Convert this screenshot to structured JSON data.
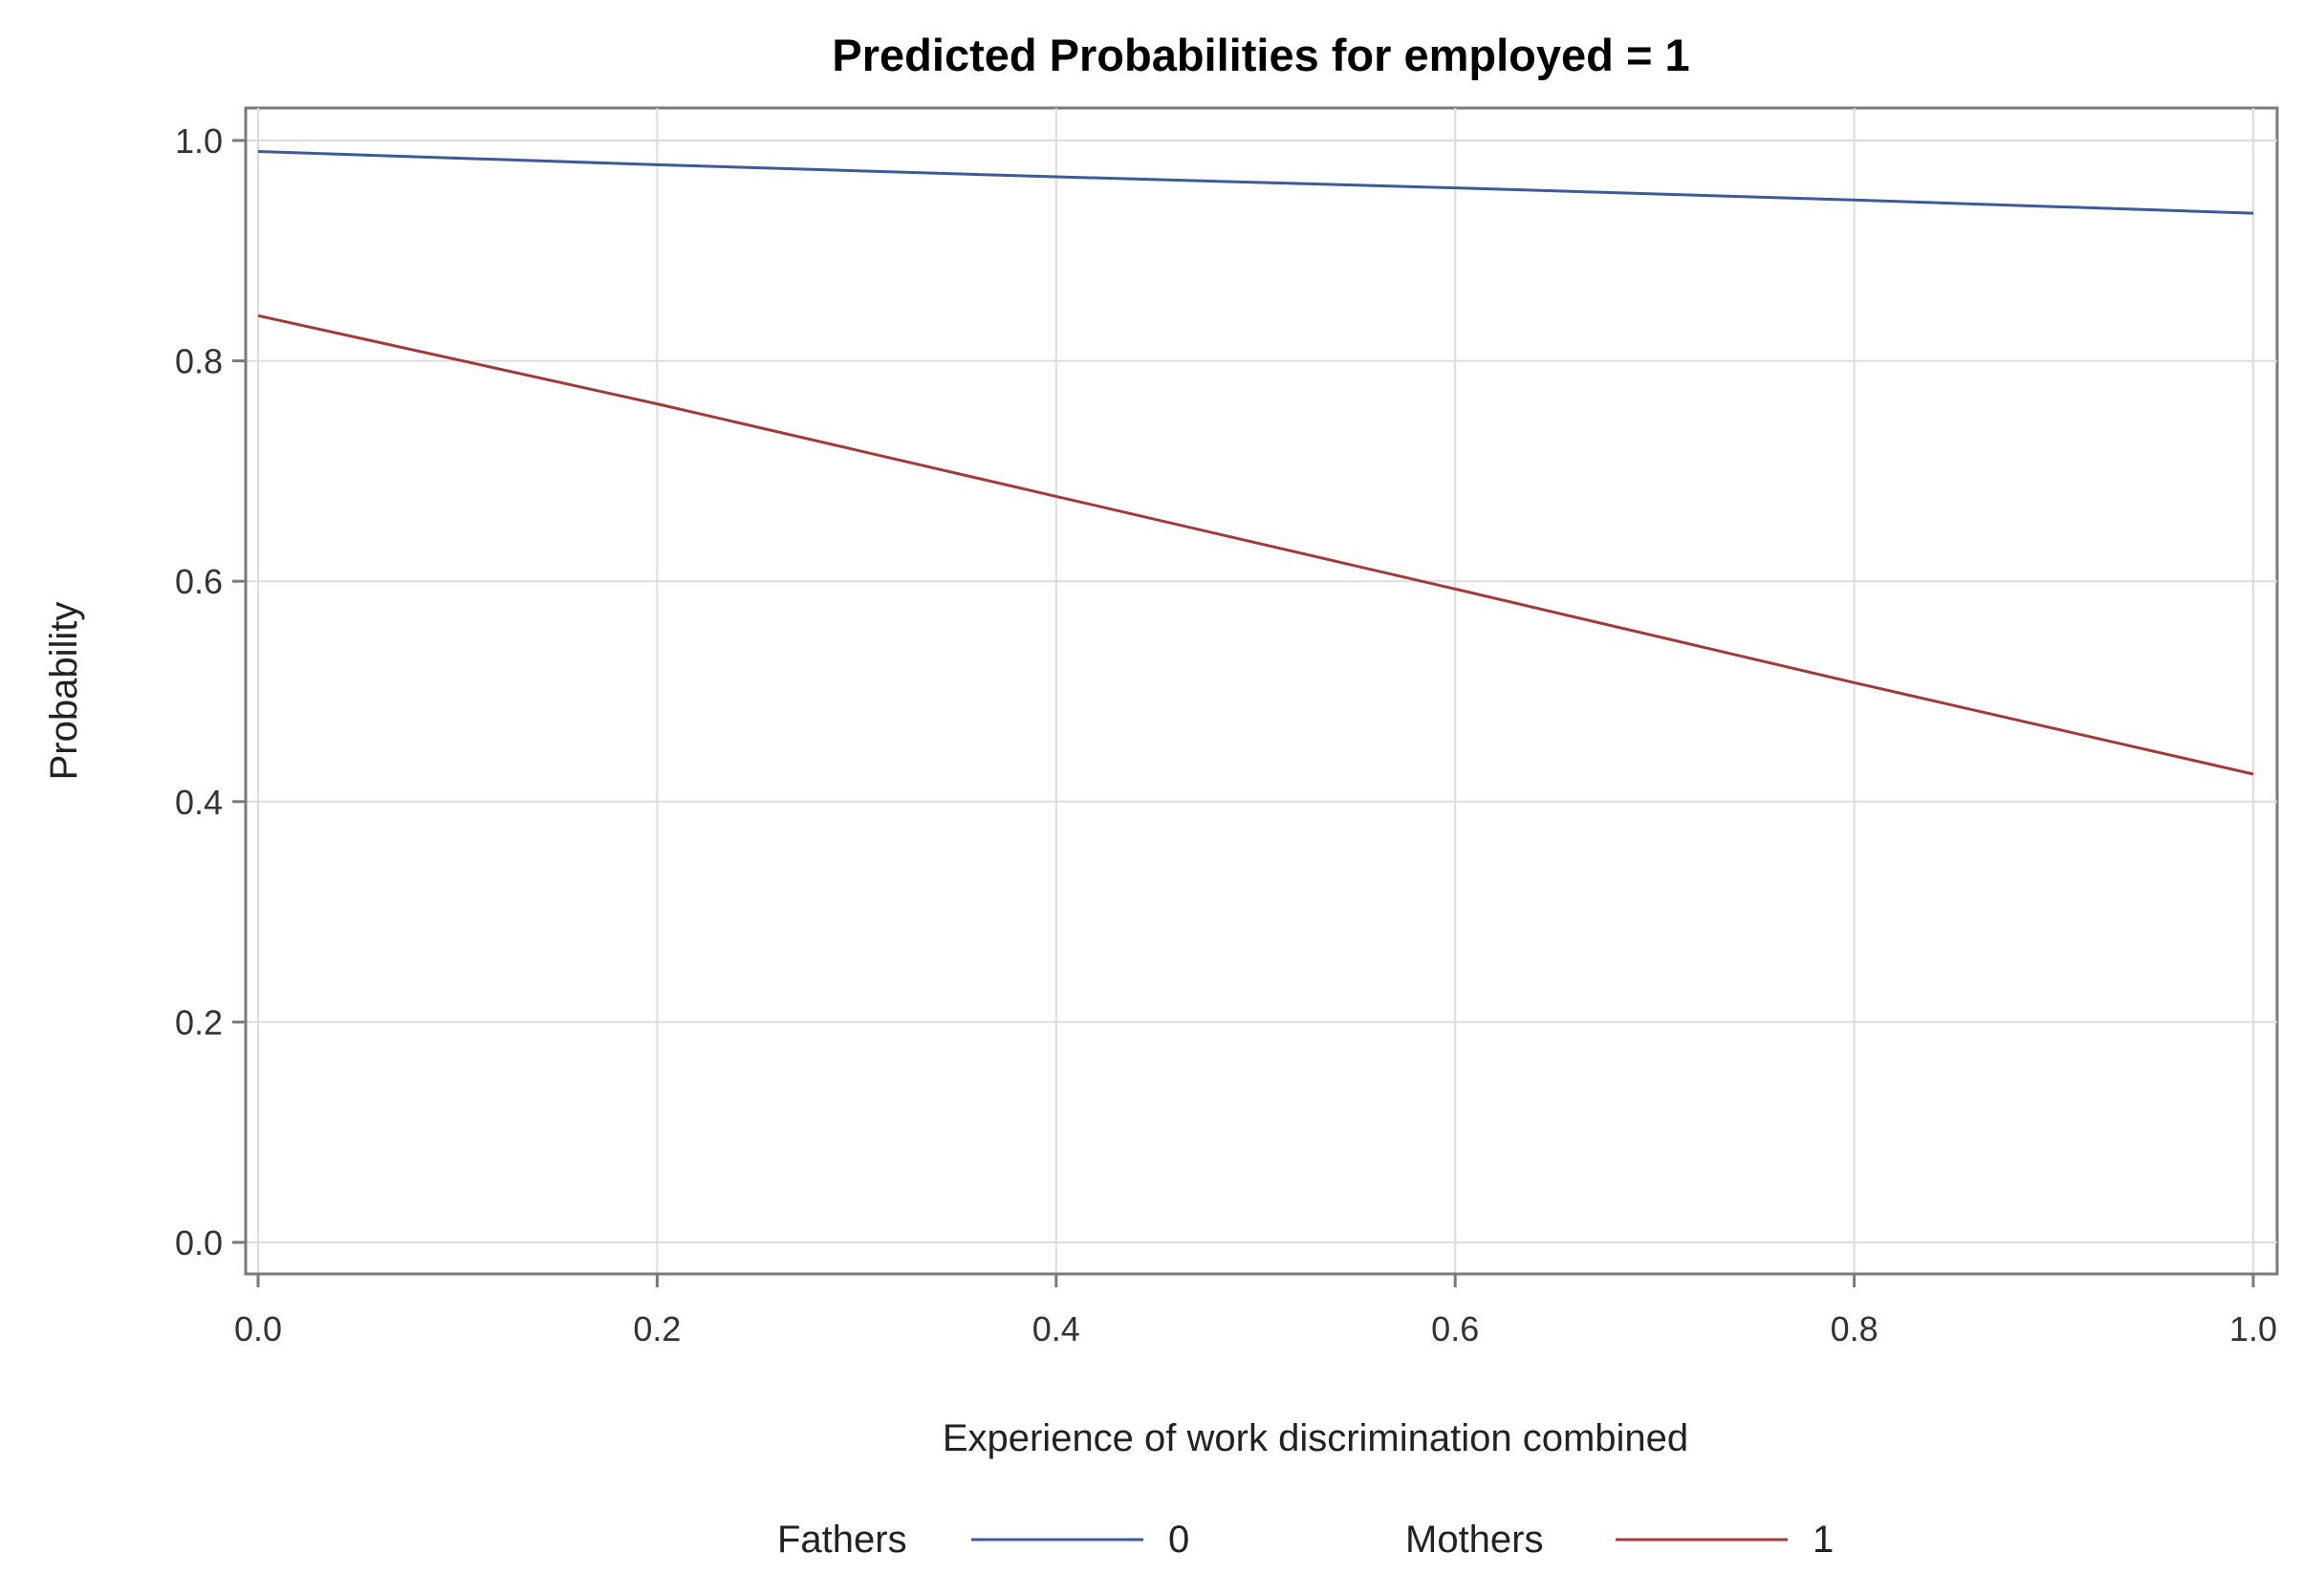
{
  "chart_data": {
    "type": "line",
    "title": "Predicted Probabilities for employed = 1",
    "xlabel": "Experience of work discrimination combined",
    "ylabel": "Probability",
    "xlim": [
      0.0,
      1.0
    ],
    "ylim": [
      0.0,
      1.0
    ],
    "x_ticks": [
      "0.0",
      "0.2",
      "0.4",
      "0.6",
      "0.8",
      "1.0"
    ],
    "y_ticks": [
      "0.0",
      "0.2",
      "0.4",
      "0.6",
      "0.8",
      "1.0"
    ],
    "grid": true,
    "legend_position": "bottom",
    "series": [
      {
        "name": "0",
        "group_label": "Fathers",
        "color": "#3d5a99",
        "x": [
          0.0,
          0.2,
          0.4,
          0.6,
          0.8,
          1.0
        ],
        "values": [
          0.99,
          0.978,
          0.967,
          0.957,
          0.946,
          0.934
        ]
      },
      {
        "name": "1",
        "group_label": "Mothers",
        "color": "#a33a3a",
        "x": [
          0.0,
          0.2,
          0.4,
          0.6,
          0.8,
          1.0
        ],
        "values": [
          0.841,
          0.761,
          0.677,
          0.593,
          0.508,
          0.425
        ]
      }
    ]
  }
}
